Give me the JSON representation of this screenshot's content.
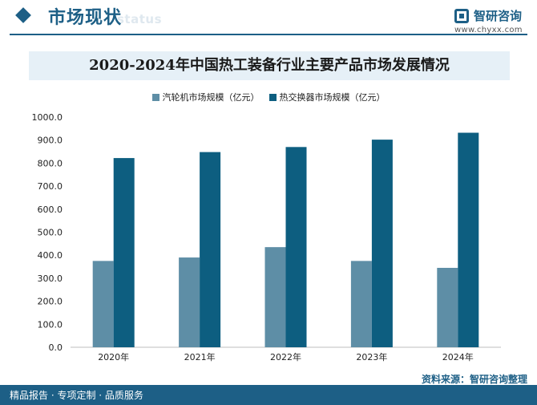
{
  "header": {
    "title": "市场现状",
    "ghost_text": "status"
  },
  "brand": {
    "name": "智研咨询",
    "url": "www.chyxx.com"
  },
  "colors": {
    "brand": "#1d5f86",
    "series_1": "#5e8ea6",
    "series_2": "#0d5e80"
  },
  "chart_data": {
    "type": "bar",
    "title": "2020-2024年中国热工装备行业主要产品市场发展情况",
    "categories": [
      "2020年",
      "2021年",
      "2022年",
      "2023年",
      "2024年"
    ],
    "series": [
      {
        "name": "汽轮机市场规模（亿元）",
        "values": [
          375,
          390,
          435,
          375,
          345
        ]
      },
      {
        "name": "热交换器市场规模（亿元）",
        "values": [
          822,
          848,
          870,
          902,
          932
        ]
      }
    ],
    "y_ticks": [
      "0.0",
      "100.0",
      "200.0",
      "300.0",
      "400.0",
      "500.0",
      "600.0",
      "700.0",
      "800.0",
      "900.0",
      "1000.0"
    ],
    "ylim": [
      0,
      1000
    ],
    "xlabel": "",
    "ylabel": "",
    "legend_position": "top-center",
    "grid": false
  },
  "footer": {
    "left_text": "精品报告 · 专项定制 · 品质服务",
    "source_text": "资料来源：智研咨询整理"
  }
}
